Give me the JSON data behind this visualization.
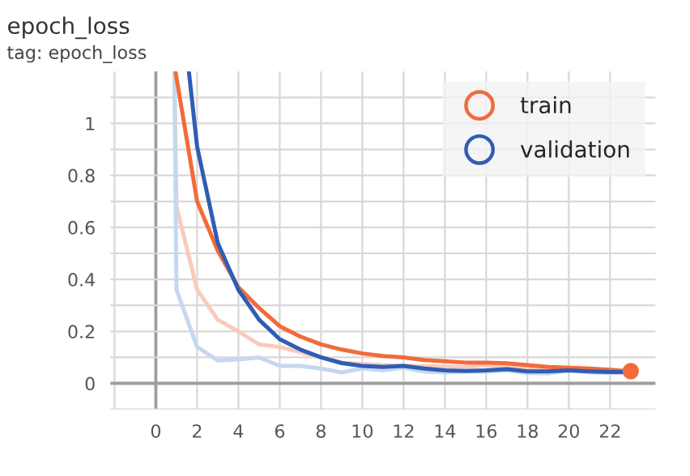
{
  "chart_data": {
    "type": "line",
    "title": "epoch_loss",
    "subtitle": "tag: epoch_loss",
    "xlim": [
      -2.2,
      24.2
    ],
    "ylim": [
      -0.1,
      1.2
    ],
    "xticks": [
      {
        "value": -2,
        "label": null
      },
      0,
      2,
      4,
      6,
      8,
      10,
      12,
      14,
      16,
      18,
      20,
      22
    ],
    "yticks": [
      {
        "value": -0.1,
        "label": null
      },
      0,
      {
        "value": 0.1,
        "label": null
      },
      0.2,
      {
        "value": 0.3,
        "label": null
      },
      0.4,
      {
        "value": 0.5,
        "label": null
      },
      0.6,
      {
        "value": 0.7,
        "label": null
      },
      0.8,
      {
        "value": 0.9,
        "label": null
      },
      1,
      {
        "value": 1.1,
        "label": null
      }
    ],
    "grid": true,
    "legend": "top right",
    "marker": "none",
    "line_style": "solid",
    "series": [
      {
        "color": "#f9cbbb",
        "x": [
          0.9,
          1,
          2,
          3,
          4,
          5,
          6,
          7,
          8,
          9,
          10,
          11,
          12,
          13,
          14,
          15,
          16,
          17,
          18,
          19,
          20,
          21,
          22,
          23
        ],
        "values": [
          1.2,
          0.68,
          0.36,
          0.245,
          0.2,
          0.15,
          0.14,
          0.12,
          0.1,
          0.08,
          0.075,
          0.07,
          0.068,
          0.066,
          0.065,
          0.063,
          0.07,
          0.065,
          0.06,
          0.055,
          0.055,
          0.05,
          0.048,
          0.045
        ]
      },
      {
        "color": "#c5d8ef",
        "x": [
          0.9,
          1,
          2,
          3,
          4,
          5,
          6,
          7,
          8,
          9,
          10,
          11,
          12,
          13,
          14,
          15,
          16,
          17,
          18,
          19,
          20,
          21,
          22,
          23
        ],
        "values": [
          1.2,
          0.36,
          0.14,
          0.088,
          0.092,
          0.1,
          0.067,
          0.067,
          0.057,
          0.042,
          0.057,
          0.05,
          0.06,
          0.045,
          0.042,
          0.045,
          0.045,
          0.05,
          0.04,
          0.038,
          0.05,
          0.042,
          0.04,
          0.04
        ]
      },
      {
        "name": "train",
        "color": "#f26b3a",
        "x": [
          0.95,
          2,
          3,
          4,
          5,
          6,
          7,
          8,
          9,
          10,
          11,
          12,
          13,
          14,
          15,
          16,
          17,
          18,
          19,
          20,
          21,
          22,
          23
        ],
        "values": [
          1.2,
          0.7,
          0.51,
          0.37,
          0.29,
          0.22,
          0.18,
          0.15,
          0.13,
          0.115,
          0.105,
          0.1,
          0.09,
          0.085,
          0.08,
          0.08,
          0.077,
          0.07,
          0.063,
          0.06,
          0.057,
          0.052,
          0.047
        ]
      },
      {
        "name": "validation",
        "color": "#2f5db5",
        "x": [
          1.6,
          2,
          3,
          4,
          5,
          6,
          7,
          8,
          9,
          10,
          11,
          12,
          13,
          14,
          15,
          16,
          17,
          18,
          19,
          20,
          21,
          22,
          23
        ],
        "values": [
          1.2,
          0.91,
          0.54,
          0.36,
          0.245,
          0.17,
          0.13,
          0.1,
          0.078,
          0.067,
          0.063,
          0.067,
          0.057,
          0.05,
          0.048,
          0.05,
          0.055,
          0.046,
          0.046,
          0.05,
          0.046,
          0.044,
          0.044
        ]
      },
      {
        "type": "scatter",
        "marker": "circle",
        "color": "#f26b3a",
        "x": [
          23
        ],
        "values": [
          0.047
        ]
      }
    ]
  }
}
